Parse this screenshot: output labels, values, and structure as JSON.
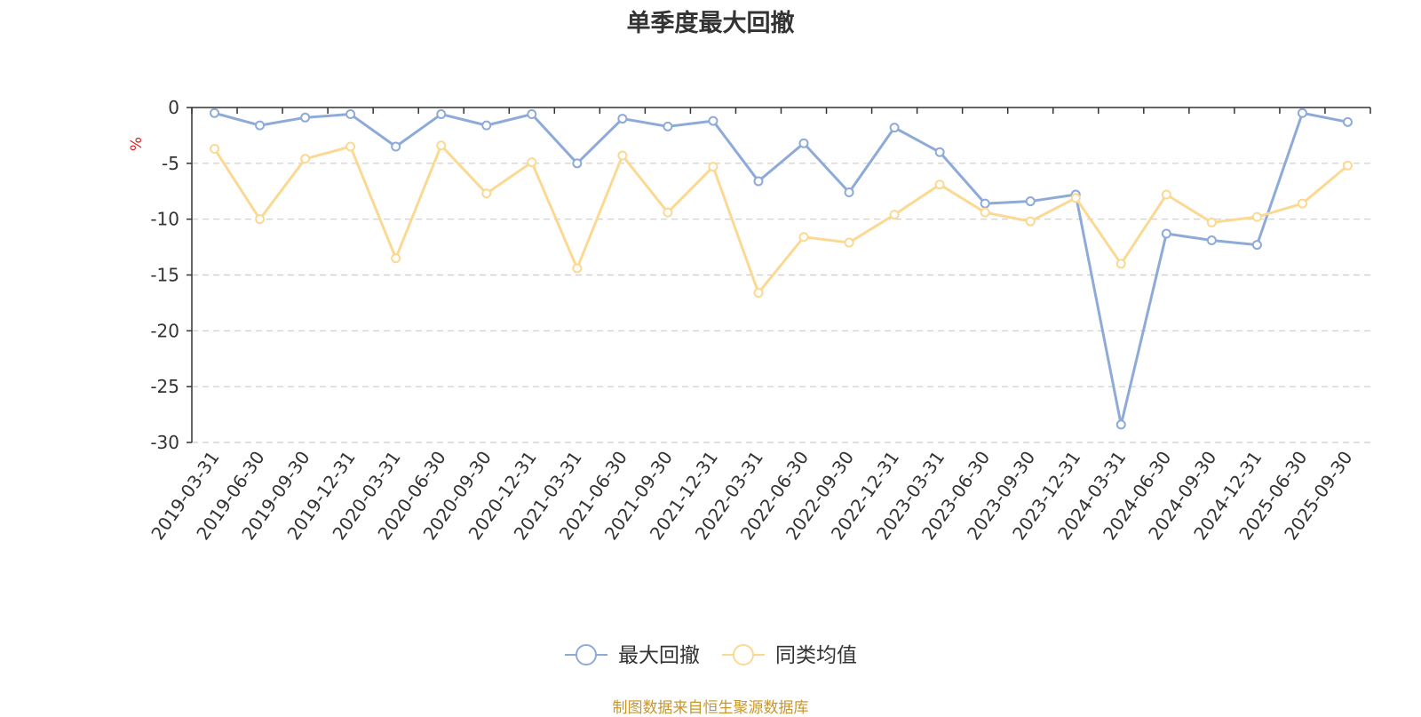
{
  "title": "单季度最大回撤",
  "source_note": "制图数据来自恒生聚源数据库",
  "chart_data": {
    "type": "line",
    "title": "单季度最大回撤",
    "ylabel": "%",
    "xlabel": "",
    "ylim": [
      -30,
      0
    ],
    "yticks": [
      0,
      -5,
      -10,
      -15,
      -20,
      -25,
      -30
    ],
    "grid": true,
    "legend_position": "bottom-center",
    "x": [
      "2019-03-31",
      "2019-06-30",
      "2019-09-30",
      "2019-12-31",
      "2020-03-31",
      "2020-06-30",
      "2020-09-30",
      "2020-12-31",
      "2021-03-31",
      "2021-06-30",
      "2021-09-30",
      "2021-12-31",
      "2022-03-31",
      "2022-06-30",
      "2022-09-30",
      "2022-12-31",
      "2023-03-31",
      "2023-06-30",
      "2023-09-30",
      "2023-12-31",
      "2024-03-31",
      "2024-06-30",
      "2024-09-30",
      "2024-12-31",
      "2025-06-30",
      "2025-09-30"
    ],
    "series": [
      {
        "name": "最大回撤",
        "color": "#8eaad8",
        "values": [
          -0.5,
          -1.6,
          -0.9,
          -0.6,
          -3.5,
          -0.6,
          -1.6,
          -0.6,
          -5.0,
          -1.0,
          -1.7,
          -1.2,
          -6.6,
          -3.2,
          -7.6,
          -1.8,
          -4.0,
          -8.6,
          -8.4,
          -7.8,
          -28.4,
          -11.3,
          -11.9,
          -12.3,
          -0.5,
          -1.3
        ]
      },
      {
        "name": "同类均值",
        "color": "#fbd993",
        "values": [
          -3.7,
          -10.0,
          -4.6,
          -3.5,
          -13.5,
          -3.4,
          -7.7,
          -4.9,
          -14.4,
          -4.3,
          -9.4,
          -5.3,
          -16.6,
          -11.6,
          -12.1,
          -9.6,
          -6.9,
          -9.4,
          -10.2,
          -8.1,
          -14.0,
          -7.8,
          -10.3,
          -9.8,
          -8.6,
          -5.2
        ]
      }
    ]
  }
}
